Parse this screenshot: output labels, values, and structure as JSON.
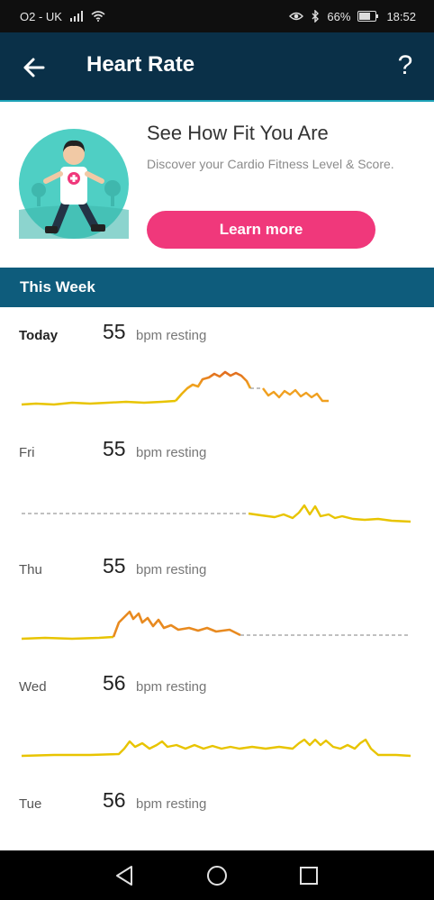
{
  "status_bar": {
    "carrier": "O2 - UK",
    "battery": "66%",
    "time": "18:52",
    "icons": [
      "signal-icon",
      "wifi-icon",
      "eye-icon",
      "bluetooth-icon",
      "battery-icon"
    ]
  },
  "app_bar": {
    "title": "Heart Rate",
    "back_icon": "back-arrow-icon",
    "help_label": "?"
  },
  "promo": {
    "title": "See How Fit You Are",
    "subtitle": "Discover your Cardio Fitness Level & Score.",
    "button": "Learn more"
  },
  "week": {
    "header": "This Week",
    "days": [
      {
        "label": "Today",
        "bpm": "55",
        "unit": "bpm resting"
      },
      {
        "label": "Fri",
        "bpm": "55",
        "unit": "bpm resting"
      },
      {
        "label": "Thu",
        "bpm": "55",
        "unit": "bpm resting"
      },
      {
        "label": "Wed",
        "bpm": "56",
        "unit": "bpm resting"
      },
      {
        "label": "Tue",
        "bpm": "56",
        "unit": "bpm resting"
      }
    ]
  },
  "colors": {
    "appbar": "#0a3048",
    "accent_line": "#1ea3b8",
    "week_header": "#0e5c7c",
    "button": "#f0387b",
    "line_low": "#e8c400",
    "line_mid": "#f0a020",
    "line_high": "#e06a20",
    "dashed": "#9a9a9a"
  },
  "nav_bar": {
    "icons": [
      "back-triangle-icon",
      "home-circle-icon",
      "recents-square-icon"
    ]
  }
}
